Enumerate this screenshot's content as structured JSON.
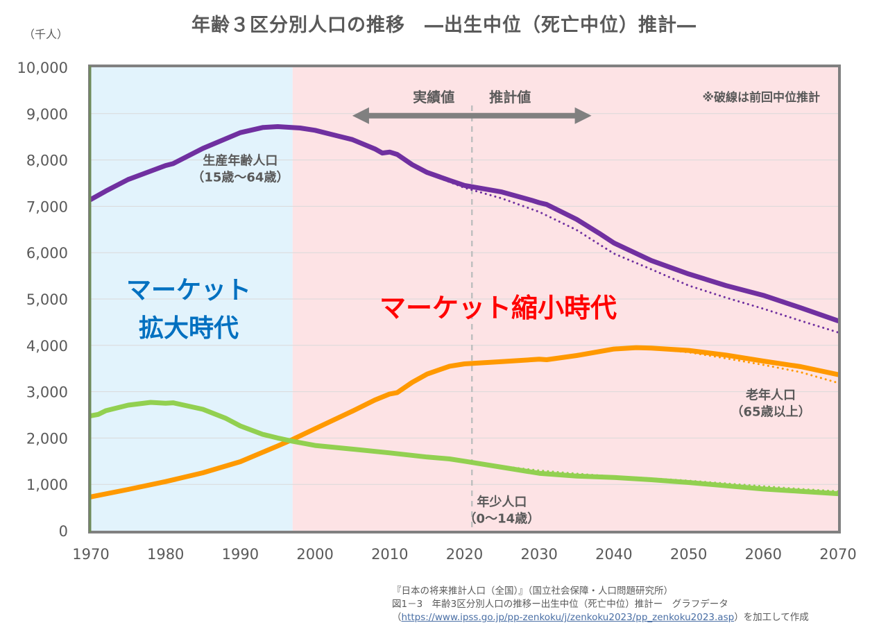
{
  "header": {
    "title": "年齢３区分別人口の推移　―出生中位（死亡中位）推計―",
    "unit_label": "（千人）"
  },
  "source": {
    "line1": "『日本の将来推計人口（全国）』（国立社会保障・人口問題研究所）",
    "line2": "図1－3　年齢3区分別人口の推移ー出生中位（死亡中位）推計ー　グラフデータ",
    "line3_prefix": "（",
    "link_text": "https://www.ipss.go.jp/pp-zenkoku/j/zenkoku2023/pp_zenkoku2023.asp",
    "line3_suffix": "）を加工して作成"
  },
  "colors": {
    "working_age": "#7030a0",
    "elderly": "#ff9900",
    "children": "#92d050",
    "expansion_bg": "#e2f3fc",
    "contraction_bg": "#fde3e5",
    "expansion_text": "#0070c0",
    "contraction_text": "#ff0000",
    "arrow": "#808080",
    "divider": "#bfbfbf",
    "frame": "#808080",
    "left_axis": "#6e8a5a",
    "grid": "#d9d9d9",
    "label": "#595959"
  },
  "chart_data": {
    "type": "line",
    "title": "年齢３区分別人口の推移　―出生中位（死亡中位）推計―",
    "xlabel": "",
    "ylabel": "（千人）",
    "xlim": [
      1970,
      2070
    ],
    "ylim": [
      0,
      10000
    ],
    "grid": true,
    "x_ticks": [
      1970,
      1980,
      1990,
      2000,
      2010,
      2020,
      2030,
      2040,
      2050,
      2060,
      2070
    ],
    "y_ticks": [
      0,
      1000,
      2000,
      3000,
      4000,
      5000,
      6000,
      7000,
      8000,
      9000,
      10000
    ],
    "y_tick_labels": [
      "0",
      "1,000",
      "2,000",
      "3,000",
      "4,000",
      "5,000",
      "6,000",
      "7,000",
      "8,000",
      "9,000",
      "10,000"
    ],
    "divider_year": 2021,
    "regions": [
      {
        "name": "expansion",
        "from": 1970,
        "to": 1997,
        "label_lines": [
          "マーケット",
          "拡大時代"
        ]
      },
      {
        "name": "contraction",
        "from": 1997,
        "to": 2070,
        "label_lines": [
          "マーケット縮小時代"
        ]
      }
    ],
    "arrow": {
      "from": 2005,
      "to": 2037,
      "y": 9000,
      "left_label": "実績値",
      "right_label": "推計値"
    },
    "note": "※破線は前回中位推計",
    "series": [
      {
        "name": "生産年齢人口",
        "label_lines": [
          "生産年齢人口",
          "（15歳～64歳）"
        ],
        "label_anchor": [
          1990,
          7900
        ],
        "color_key": "working_age",
        "style": "solid",
        "points": [
          [
            1970,
            7150
          ],
          [
            1972,
            7330
          ],
          [
            1975,
            7580
          ],
          [
            1978,
            7760
          ],
          [
            1980,
            7880
          ],
          [
            1981,
            7920
          ],
          [
            1985,
            8250
          ],
          [
            1990,
            8590
          ],
          [
            1993,
            8700
          ],
          [
            1995,
            8720
          ],
          [
            1998,
            8690
          ],
          [
            2000,
            8640
          ],
          [
            2003,
            8520
          ],
          [
            2005,
            8440
          ],
          [
            2008,
            8240
          ],
          [
            2009,
            8150
          ],
          [
            2010,
            8170
          ],
          [
            2011,
            8120
          ],
          [
            2013,
            7900
          ],
          [
            2015,
            7730
          ],
          [
            2018,
            7560
          ],
          [
            2020,
            7450
          ],
          [
            2025,
            7310
          ],
          [
            2029,
            7130
          ],
          [
            2030,
            7080
          ],
          [
            2031,
            7040
          ],
          [
            2035,
            6720
          ],
          [
            2038,
            6420
          ],
          [
            2040,
            6210
          ],
          [
            2045,
            5830
          ],
          [
            2050,
            5540
          ],
          [
            2055,
            5290
          ],
          [
            2060,
            5080
          ],
          [
            2065,
            4810
          ],
          [
            2070,
            4530
          ]
        ]
      },
      {
        "name": "生産年齢人口（前回中位推計）",
        "color_key": "working_age",
        "style": "dotted",
        "points": [
          [
            2016,
            7650
          ],
          [
            2020,
            7400
          ],
          [
            2025,
            7170
          ],
          [
            2030,
            6880
          ],
          [
            2035,
            6490
          ],
          [
            2040,
            5980
          ],
          [
            2045,
            5640
          ],
          [
            2050,
            5290
          ],
          [
            2055,
            5030
          ],
          [
            2060,
            4790
          ],
          [
            2065,
            4530
          ],
          [
            2070,
            4280
          ]
        ]
      },
      {
        "name": "老年人口",
        "label_lines": [
          "老年人口",
          "（65歳以上）"
        ],
        "label_anchor": [
          2061,
          2840
        ],
        "color_key": "elderly",
        "style": "solid",
        "points": [
          [
            1970,
            730
          ],
          [
            1975,
            890
          ],
          [
            1980,
            1060
          ],
          [
            1985,
            1250
          ],
          [
            1990,
            1490
          ],
          [
            1995,
            1830
          ],
          [
            1997,
            1970
          ],
          [
            2000,
            2200
          ],
          [
            2005,
            2580
          ],
          [
            2008,
            2820
          ],
          [
            2010,
            2950
          ],
          [
            2011,
            2980
          ],
          [
            2013,
            3200
          ],
          [
            2015,
            3380
          ],
          [
            2018,
            3550
          ],
          [
            2020,
            3600
          ],
          [
            2025,
            3650
          ],
          [
            2030,
            3700
          ],
          [
            2031,
            3690
          ],
          [
            2035,
            3780
          ],
          [
            2040,
            3920
          ],
          [
            2043,
            3950
          ],
          [
            2045,
            3940
          ],
          [
            2050,
            3890
          ],
          [
            2055,
            3790
          ],
          [
            2060,
            3660
          ],
          [
            2065,
            3540
          ],
          [
            2070,
            3370
          ]
        ]
      },
      {
        "name": "老年人口（前回中位推計）",
        "color_key": "elderly",
        "style": "dotted",
        "points": [
          [
            2045,
            3930
          ],
          [
            2050,
            3850
          ],
          [
            2055,
            3720
          ],
          [
            2060,
            3580
          ],
          [
            2065,
            3420
          ],
          [
            2070,
            3190
          ]
        ]
      },
      {
        "name": "年少人口",
        "label_lines": [
          "年少人口",
          "（0～14歳）"
        ],
        "label_anchor": [
          2025,
          530
        ],
        "color_key": "children",
        "style": "solid",
        "points": [
          [
            1970,
            2480
          ],
          [
            1971,
            2510
          ],
          [
            1972,
            2590
          ],
          [
            1975,
            2710
          ],
          [
            1978,
            2770
          ],
          [
            1980,
            2750
          ],
          [
            1981,
            2760
          ],
          [
            1985,
            2620
          ],
          [
            1988,
            2430
          ],
          [
            1990,
            2260
          ],
          [
            1993,
            2080
          ],
          [
            1995,
            2000
          ],
          [
            1997,
            1930
          ],
          [
            2000,
            1840
          ],
          [
            2005,
            1760
          ],
          [
            2010,
            1680
          ],
          [
            2015,
            1590
          ],
          [
            2018,
            1550
          ],
          [
            2020,
            1500
          ],
          [
            2025,
            1370
          ],
          [
            2030,
            1240
          ],
          [
            2035,
            1180
          ],
          [
            2040,
            1150
          ],
          [
            2045,
            1100
          ],
          [
            2050,
            1040
          ],
          [
            2055,
            970
          ],
          [
            2060,
            900
          ],
          [
            2065,
            850
          ],
          [
            2070,
            800
          ]
        ]
      },
      {
        "name": "年少人口（前回中位推計）",
        "color_key": "children",
        "style": "dotted",
        "points": [
          [
            2022,
            1440
          ],
          [
            2025,
            1390
          ],
          [
            2030,
            1300
          ],
          [
            2035,
            1230
          ],
          [
            2040,
            1170
          ],
          [
            2045,
            1130
          ],
          [
            2050,
            1080
          ],
          [
            2055,
            1020
          ],
          [
            2060,
            960
          ],
          [
            2065,
            900
          ],
          [
            2070,
            850
          ]
        ]
      }
    ]
  }
}
